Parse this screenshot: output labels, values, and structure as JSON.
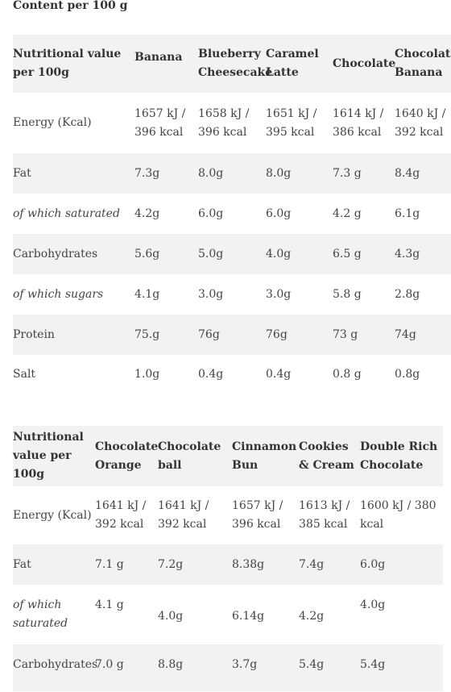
{
  "heading": "Content per 100 g",
  "tables": [
    {
      "headers": [
        "Nutritional value per 100g",
        "Banana",
        "Blueberry Cheesecake",
        "Caramel Latte",
        "Chocolate",
        "Chocolate Banana"
      ],
      "rows": [
        {
          "label": "Energy (Kcal)",
          "values": [
            "1657 kJ / 396 kcal",
            "1658 kJ / 396 kcal",
            "1651 kJ / 395 kcal",
            "1614 kJ / 386 kcal",
            "1640 kJ / 392 kcal"
          ]
        },
        {
          "label": "Fat",
          "values": [
            "7.3g",
            "8.0g",
            "8.0g",
            "7.3 g",
            "8.4g"
          ]
        },
        {
          "label": "of which saturated",
          "values": [
            "4.2g",
            "6.0g",
            "6.0g",
            "4.2 g",
            "6.1g"
          ]
        },
        {
          "label": "Carbohydrates",
          "values": [
            "5.6g",
            "5.0g",
            "4.0g",
            "6.5 g",
            "4.3g"
          ]
        },
        {
          "label": "of which sugars",
          "values": [
            "4.1g",
            "3.0g",
            "3.0g",
            "5.8 g",
            "2.8g"
          ]
        },
        {
          "label": "Protein",
          "values": [
            "75.g",
            "76g",
            "76g",
            "73 g",
            "74g"
          ]
        },
        {
          "label": "Salt",
          "values": [
            "1.0g",
            "0.4g",
            "0.4g",
            "0.8 g",
            "0.8g"
          ]
        }
      ]
    },
    {
      "headers": [
        "Nutritional value per 100g",
        "Chocolate Orange",
        "Chocolate ball",
        "Cinnamon Bun",
        "Cookies & Cream",
        "Double Rich Chocolate"
      ],
      "rows": [
        {
          "label": "Energy (Kcal)",
          "values": [
            "1641 kJ / 392 kcal",
            "1641 kJ / 392 kcal",
            "1657 kJ / 396 kcal",
            "1613 kJ / 385 kcal",
            "1600 kJ / 380 kcal"
          ]
        },
        {
          "label": "Fat",
          "values": [
            "7.1 g",
            "7.2g",
            "8.38g",
            "7.4g",
            "6.0g"
          ]
        },
        {
          "label": "of which saturated",
          "values": [
            "4.1 g",
            "4.0g",
            "6.14g",
            "4.2g",
            "4.0g"
          ]
        },
        {
          "label": "Carbohydrates",
          "values": [
            "7.0 g",
            "8.8g",
            "3.7g",
            "5.4g",
            "5.4g"
          ]
        }
      ]
    }
  ]
}
